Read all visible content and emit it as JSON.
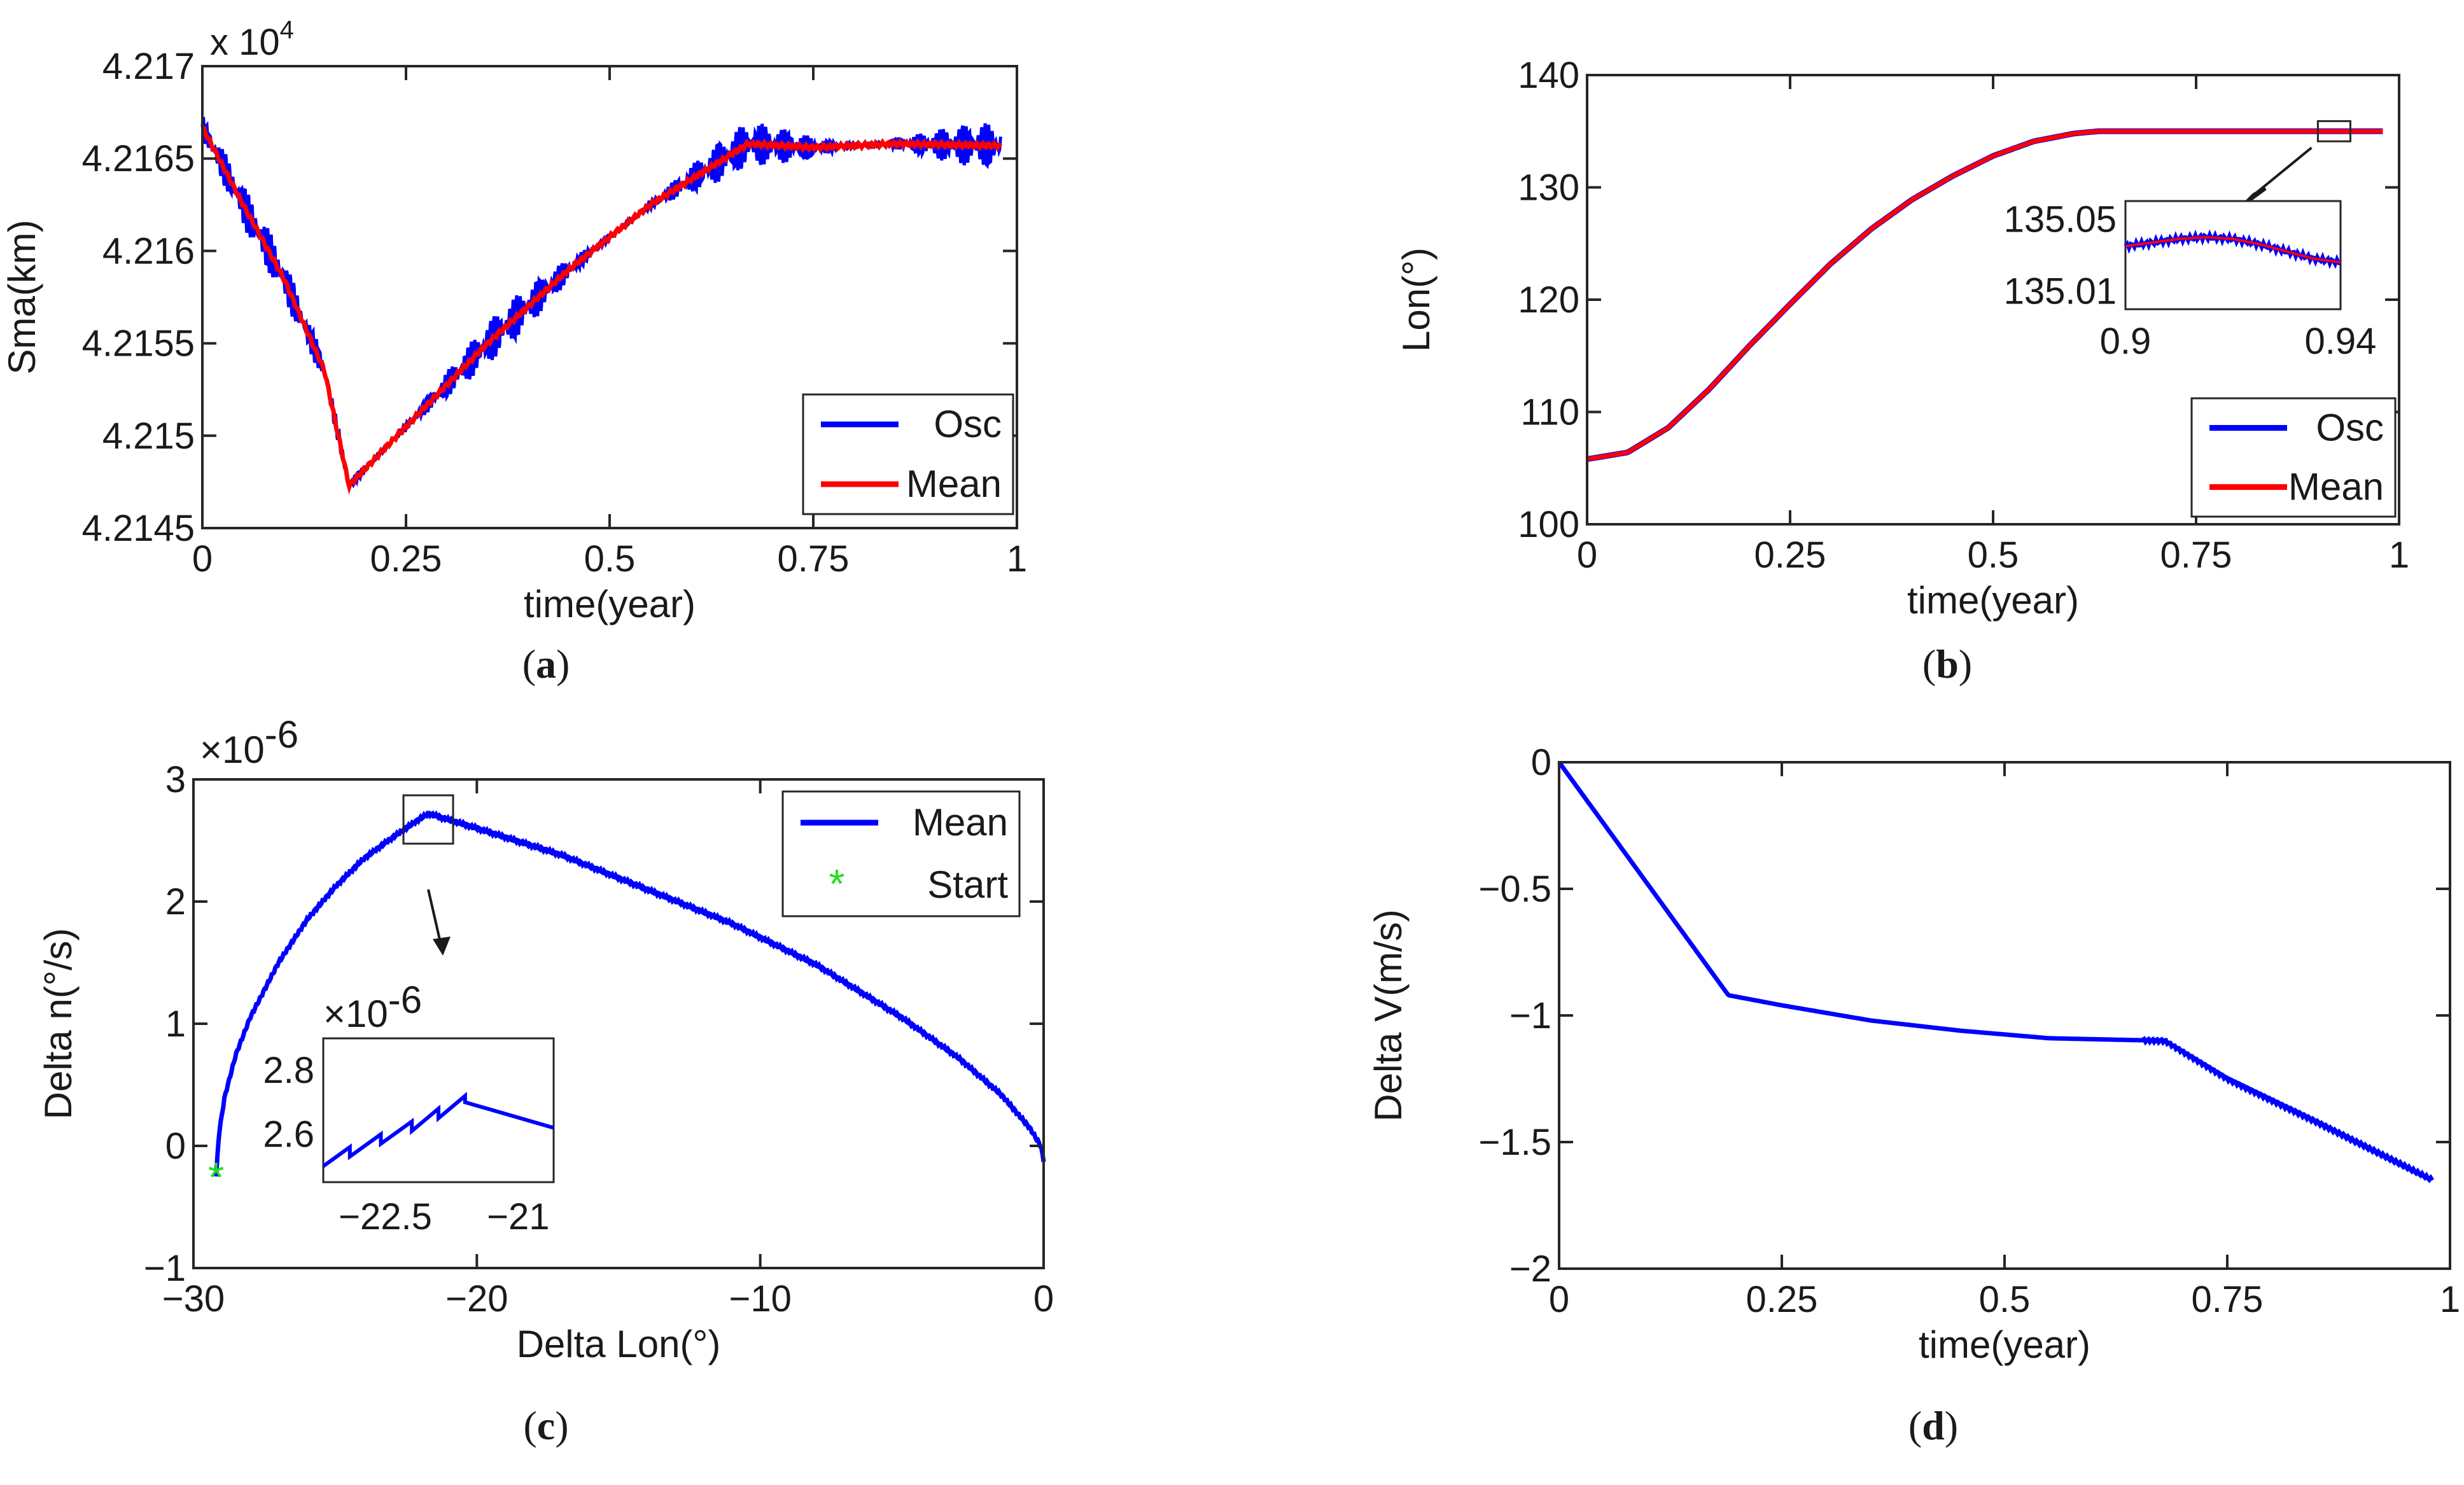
{
  "chart_data": [
    {
      "id": "a",
      "type": "line",
      "caption": "a",
      "xlabel": "time(year)",
      "ylabel": "Sma(km)",
      "multiplier": "x 10",
      "multiplier_exp": "4",
      "xlim": [
        0,
        1
      ],
      "ylim": [
        4.2145,
        4.217
      ],
      "xticks": [
        0,
        0.25,
        0.5,
        0.75,
        1
      ],
      "xtick_labels": [
        "0",
        "0.25",
        "0.5",
        "0.75",
        "1"
      ],
      "yticks": [
        4.2145,
        4.215,
        4.2155,
        4.216,
        4.2165,
        4.217
      ],
      "ytick_labels": [
        "4.2145",
        "4.215",
        "4.2155",
        "4.216",
        "4.2165",
        "4.217"
      ],
      "legend_position": "bottom-right",
      "series": [
        {
          "name": "Osc",
          "color": "#0000ff",
          "x": [
            0,
            0.05,
            0.1,
            0.15,
            0.18,
            0.25,
            0.35,
            0.45,
            0.55,
            0.67,
            0.75,
            0.85,
            0.98
          ],
          "y": [
            4.21667,
            4.21625,
            4.21585,
            4.21535,
            4.21473,
            4.21505,
            4.2155,
            4.2159,
            4.21625,
            4.21658,
            4.21656,
            4.21658,
            4.21657
          ],
          "amplitude": 0.00012
        },
        {
          "name": "Mean",
          "color": "#ff0000",
          "x": [
            0,
            0.05,
            0.1,
            0.15,
            0.18,
            0.25,
            0.35,
            0.45,
            0.55,
            0.67,
            0.75,
            0.85,
            0.98
          ],
          "y": [
            4.21667,
            4.21625,
            4.21585,
            4.21535,
            4.21473,
            4.21505,
            4.2155,
            4.2159,
            4.21625,
            4.21658,
            4.21656,
            4.21658,
            4.21657
          ]
        }
      ]
    },
    {
      "id": "b",
      "type": "line",
      "caption": "b",
      "xlabel": "time(year)",
      "ylabel": "Lon(°)",
      "xlim": [
        0,
        1
      ],
      "ylim": [
        100,
        140
      ],
      "xticks": [
        0,
        0.25,
        0.5,
        0.75,
        1
      ],
      "xtick_labels": [
        "0",
        "0.25",
        "0.5",
        "0.75",
        "1"
      ],
      "yticks": [
        100,
        110,
        120,
        130,
        140
      ],
      "ytick_labels": [
        "100",
        "110",
        "120",
        "130",
        "140"
      ],
      "legend_position": "bottom-right",
      "series": [
        {
          "name": "Osc",
          "color": "#0000ff",
          "x": [
            0,
            0.05,
            0.1,
            0.15,
            0.2,
            0.25,
            0.3,
            0.35,
            0.4,
            0.45,
            0.5,
            0.55,
            0.6,
            0.63,
            0.7,
            0.8,
            0.9,
            0.98
          ],
          "y": [
            105.8,
            106.4,
            108.6,
            112.0,
            115.9,
            119.6,
            123.2,
            126.3,
            128.9,
            131.0,
            132.8,
            134.1,
            134.8,
            135.0,
            135.0,
            135.0,
            135.0,
            135.0
          ]
        },
        {
          "name": "Mean",
          "color": "#ff0000",
          "x": [
            0,
            0.05,
            0.1,
            0.15,
            0.2,
            0.25,
            0.3,
            0.35,
            0.4,
            0.45,
            0.5,
            0.55,
            0.6,
            0.63,
            0.7,
            0.8,
            0.9,
            0.98
          ],
          "y": [
            105.8,
            106.4,
            108.6,
            112.0,
            115.9,
            119.6,
            123.2,
            126.3,
            128.9,
            131.0,
            132.8,
            134.1,
            134.8,
            135.0,
            135.0,
            135.0,
            135.0,
            135.0
          ]
        }
      ],
      "inset": {
        "xlim": [
          0.9,
          0.94
        ],
        "ylim": [
          135.0,
          135.06
        ],
        "xtick_labels": [
          "0.9",
          "0.94"
        ],
        "ytick_labels": [
          "135.05",
          "135.01"
        ],
        "ytick_values": [
          135.05,
          135.01
        ],
        "x": [
          0.9,
          0.905,
          0.91,
          0.915,
          0.92,
          0.925,
          0.93,
          0.935,
          0.94
        ],
        "y": [
          135.035,
          135.037,
          135.039,
          135.04,
          135.039,
          135.036,
          135.032,
          135.028,
          135.026
        ]
      }
    },
    {
      "id": "c",
      "type": "line",
      "caption": "c",
      "xlabel": "Delta Lon(°)",
      "ylabel": "Delta n(°/s)",
      "multiplier": "×10",
      "multiplier_exp": "-6",
      "xlim": [
        -30,
        0
      ],
      "ylim": [
        -1,
        3
      ],
      "xticks": [
        -30,
        -20,
        -10,
        0
      ],
      "xtick_labels": [
        "−30",
        "−20",
        "−10",
        "0"
      ],
      "yticks": [
        -1,
        0,
        1,
        2,
        3
      ],
      "ytick_labels": [
        "−1",
        "0",
        "1",
        "2",
        "3"
      ],
      "legend_position": "top-right",
      "series": [
        {
          "name": "Mean",
          "color": "#0000ff",
          "x": [
            -29.2,
            -29.1,
            -28.9,
            -28.5,
            -28.0,
            -27.0,
            -26.0,
            -25.0,
            -24.0,
            -23.0,
            -22.0,
            -21.7,
            -20.0,
            -17.0,
            -14.0,
            -11.0,
            -8.0,
            -5.0,
            -3.0,
            -1.5,
            -0.5,
            -0.1,
            0
          ],
          "y": [
            -0.25,
            0.1,
            0.4,
            0.75,
            1.05,
            1.5,
            1.85,
            2.12,
            2.35,
            2.52,
            2.68,
            2.72,
            2.6,
            2.38,
            2.1,
            1.82,
            1.48,
            1.05,
            0.72,
            0.42,
            0.15,
            0.0,
            -0.12
          ]
        },
        {
          "name": "Start",
          "color": "#22dd22",
          "x": [
            -29.2
          ],
          "y": [
            -0.25
          ]
        }
      ],
      "inset": {
        "xlim": [
          -23.2,
          -20.6
        ],
        "ylim": [
          2.45,
          2.9
        ],
        "multiplier": "×10",
        "multiplier_exp": "-6",
        "xtick_labels": [
          "−22.5",
          "−21"
        ],
        "xtick_values": [
          -22.5,
          -21
        ],
        "ytick_labels": [
          "2.8",
          "2.6"
        ],
        "ytick_values": [
          2.8,
          2.6
        ],
        "x": [
          -23.2,
          -22.9,
          -22.9,
          -22.55,
          -22.55,
          -22.2,
          -22.2,
          -21.9,
          -21.9,
          -21.6,
          -21.6,
          -20.6
        ],
        "y": [
          2.5,
          2.56,
          2.53,
          2.6,
          2.57,
          2.64,
          2.61,
          2.68,
          2.65,
          2.72,
          2.7,
          2.62
        ]
      }
    },
    {
      "id": "d",
      "type": "line",
      "caption": "d",
      "xlabel": "time(year)",
      "ylabel": "Delta V(m/s)",
      "xlim": [
        0,
        1
      ],
      "ylim": [
        -2,
        0
      ],
      "xticks": [
        0,
        0.25,
        0.5,
        0.75,
        1
      ],
      "xtick_labels": [
        "0",
        "0.25",
        "0.5",
        "0.75",
        "1"
      ],
      "yticks": [
        0,
        -0.5,
        -1,
        -1.5,
        -2
      ],
      "ytick_labels": [
        "0",
        "−0.5",
        "−1",
        "−1.5",
        "−2"
      ],
      "series": [
        {
          "name": "Delta V",
          "color": "#0000ff",
          "x": [
            0,
            0.19,
            0.25,
            0.35,
            0.45,
            0.55,
            0.68,
            0.75,
            0.85,
            0.98
          ],
          "y": [
            0,
            -0.92,
            -0.96,
            -1.02,
            -1.06,
            -1.09,
            -1.1,
            -1.25,
            -1.42,
            -1.65
          ]
        }
      ]
    }
  ]
}
